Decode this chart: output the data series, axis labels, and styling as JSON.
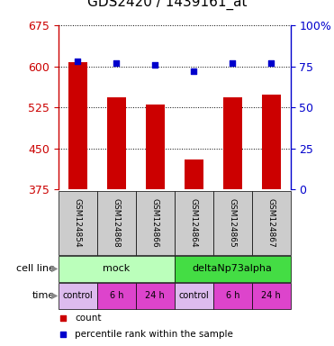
{
  "title": "GDS2420 / 1439161_at",
  "samples": [
    "GSM124854",
    "GSM124868",
    "GSM124866",
    "GSM124864",
    "GSM124865",
    "GSM124867"
  ],
  "counts": [
    608,
    543,
    530,
    430,
    543,
    548
  ],
  "percentiles": [
    78,
    77,
    76,
    72,
    77,
    77
  ],
  "ylim_left": [
    375,
    675
  ],
  "ylim_right": [
    0,
    100
  ],
  "yticks_left": [
    375,
    450,
    525,
    600,
    675
  ],
  "yticks_right": [
    0,
    25,
    50,
    75,
    100
  ],
  "bar_color": "#cc0000",
  "dot_color": "#0000cc",
  "bar_width": 0.5,
  "cell_line_labels": [
    "mock",
    "deltaNp73alpha"
  ],
  "cell_line_spans": [
    [
      0,
      3
    ],
    [
      3,
      6
    ]
  ],
  "cell_line_colors": [
    "#bbffbb",
    "#44dd44"
  ],
  "time_labels": [
    "control",
    "6 h",
    "24 h",
    "control",
    "6 h",
    "24 h"
  ],
  "time_color_list": [
    "#ddbbee",
    "#dd44cc",
    "#dd44cc",
    "#ddbbee",
    "#dd44cc",
    "#dd44cc"
  ],
  "legend_bar_label": "count",
  "legend_dot_label": "percentile rank within the sample",
  "cell_line_row_label": "cell line",
  "time_row_label": "time",
  "background_gsm": "#cccccc",
  "title_fontsize": 11,
  "tick_fontsize": 9,
  "label_fontsize": 8
}
